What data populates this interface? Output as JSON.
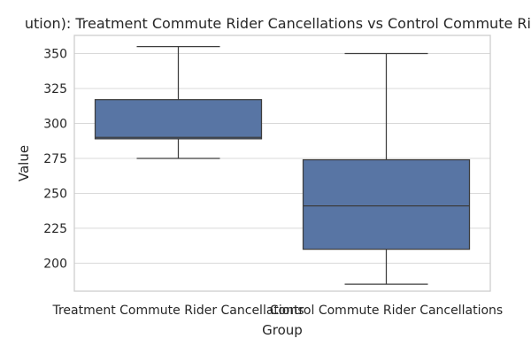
{
  "chart_data": {
    "type": "box",
    "title": "ution): Treatment Commute Rider Cancellations vs Control Commute Rid",
    "xlabel": "Group",
    "ylabel": "Value",
    "ylim": [
      180,
      363
    ],
    "yticks": [
      200,
      225,
      250,
      275,
      300,
      325,
      350
    ],
    "grid": true,
    "colors": {
      "box_fill": "#5875a4",
      "line": "#3d3d3d",
      "grid": "#d9d9d9",
      "spine": "#cccccc"
    },
    "categories": [
      "Treatment Commute Rider Cancellations",
      "Control Commute Rider Cancellations"
    ],
    "boxes": [
      {
        "name": "Treatment Commute Rider Cancellations",
        "whisker_low": 275,
        "q1": 289,
        "median": 290,
        "q3": 317,
        "whisker_high": 355
      },
      {
        "name": "Control Commute Rider Cancellations",
        "whisker_low": 185,
        "q1": 210,
        "median": 241,
        "q3": 274,
        "whisker_high": 350
      }
    ]
  }
}
